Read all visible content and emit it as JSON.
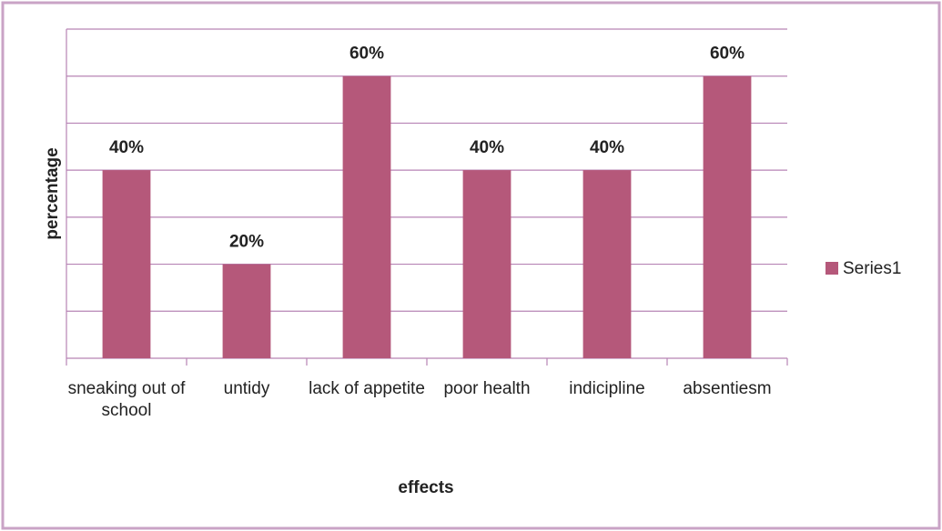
{
  "chart_data": {
    "type": "bar",
    "x_label": "effects",
    "y_label": "percentage",
    "categories": [
      "sneaking out of school",
      "untidy",
      "lack of appetite",
      "poor health",
      "indicipline",
      "absentiesm"
    ],
    "series": [
      {
        "name": "Series1",
        "color": "#b5587a",
        "values": [
          40,
          20,
          60,
          40,
          40,
          60
        ],
        "value_labels": [
          "40%",
          "20%",
          "60%",
          "40%",
          "40%",
          "60%"
        ]
      }
    ],
    "ylim": [
      0,
      70
    ],
    "yticks": [
      0,
      10,
      20,
      30,
      40,
      50,
      60,
      70
    ],
    "grid": true,
    "legend": "right"
  }
}
